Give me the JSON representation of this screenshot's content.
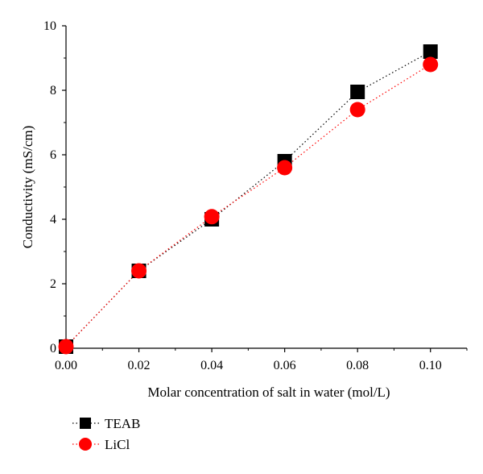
{
  "chart_data": {
    "type": "scatter",
    "title": "",
    "xlabel": "Molar concentration of salt in water (mol/L)",
    "ylabel": "Conductivity (mS/cm)",
    "xlim": [
      0.0,
      0.11
    ],
    "ylim": [
      0,
      10
    ],
    "x_ticks": [
      "0.00",
      "0.02",
      "0.04",
      "0.06",
      "0.08",
      "0.10"
    ],
    "y_ticks": [
      "0",
      "2",
      "4",
      "6",
      "8",
      "10"
    ],
    "grid": false,
    "legend_position": "bottom-left",
    "series": [
      {
        "name": "TEAB",
        "marker": "square",
        "color": "#000000",
        "line_style": "dotted",
        "x": [
          0.0,
          0.02,
          0.04,
          0.06,
          0.08,
          0.1
        ],
        "y": [
          0.05,
          2.4,
          4.0,
          5.8,
          7.95,
          9.2
        ]
      },
      {
        "name": "LiCl",
        "marker": "circle",
        "color": "#ff0000",
        "line_style": "dotted",
        "x": [
          0.0,
          0.02,
          0.04,
          0.06,
          0.08,
          0.1
        ],
        "y": [
          0.05,
          2.4,
          4.08,
          5.6,
          7.4,
          8.8
        ]
      }
    ]
  }
}
